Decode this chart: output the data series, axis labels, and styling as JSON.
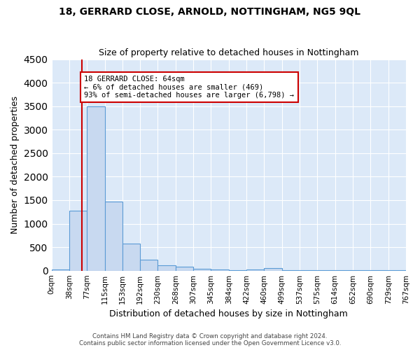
{
  "title1": "18, GERRARD CLOSE, ARNOLD, NOTTINGHAM, NG5 9QL",
  "title2": "Size of property relative to detached houses in Nottingham",
  "xlabel": "Distribution of detached houses by size in Nottingham",
  "ylabel": "Number of detached properties",
  "bin_labels": [
    "0sqm",
    "38sqm",
    "77sqm",
    "115sqm",
    "153sqm",
    "192sqm",
    "230sqm",
    "268sqm",
    "307sqm",
    "345sqm",
    "384sqm",
    "422sqm",
    "460sqm",
    "499sqm",
    "537sqm",
    "575sqm",
    "614sqm",
    "652sqm",
    "690sqm",
    "729sqm",
    "767sqm"
  ],
  "counts": [
    30,
    1280,
    3500,
    1470,
    570,
    240,
    120,
    80,
    40,
    20,
    10,
    30,
    50,
    5,
    5,
    5,
    5,
    5,
    5,
    5
  ],
  "property_bin_index": 1.7,
  "annotation_text": "18 GERRARD CLOSE: 64sqm\n← 6% of detached houses are smaller (469)\n93% of semi-detached houses are larger (6,798) →",
  "annotation_box_color": "#ffffff",
  "annotation_border_color": "#cc0000",
  "bar_face_color": "#c8d9f0",
  "bar_edge_color": "#5b9bd5",
  "vline_color": "#cc0000",
  "background_color": "#dce9f8",
  "grid_color": "#ffffff",
  "ylim": [
    0,
    4500
  ],
  "footer1": "Contains HM Land Registry data © Crown copyright and database right 2024.",
  "footer2": "Contains public sector information licensed under the Open Government Licence v3.0."
}
